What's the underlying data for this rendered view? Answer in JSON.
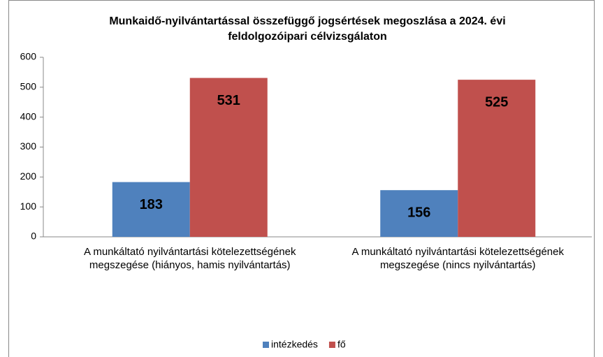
{
  "chart_data": {
    "type": "bar",
    "title": "Munkaidő-nyilvántartással összefüggő jogsértések megoszlása a 2024. évi feldolgozóipari célvizsgálaton",
    "categories": [
      "A munkáltató nyilvántartási kötelezettségének megszegése  (hiányos, hamis nyilvántartás)",
      "A munkáltató nyilvántartási kötelezettségének megszegése (nincs nyilvántartás)"
    ],
    "series": [
      {
        "name": "intézkedés",
        "color": "#4f81bd",
        "values": [
          183,
          156
        ]
      },
      {
        "name": "fő",
        "color": "#c0504d",
        "values": [
          531,
          525
        ]
      }
    ],
    "ylim": [
      0,
      600
    ],
    "yticks": [
      0,
      100,
      200,
      300,
      400,
      500,
      600
    ],
    "grid": false,
    "legend": "bottom"
  }
}
